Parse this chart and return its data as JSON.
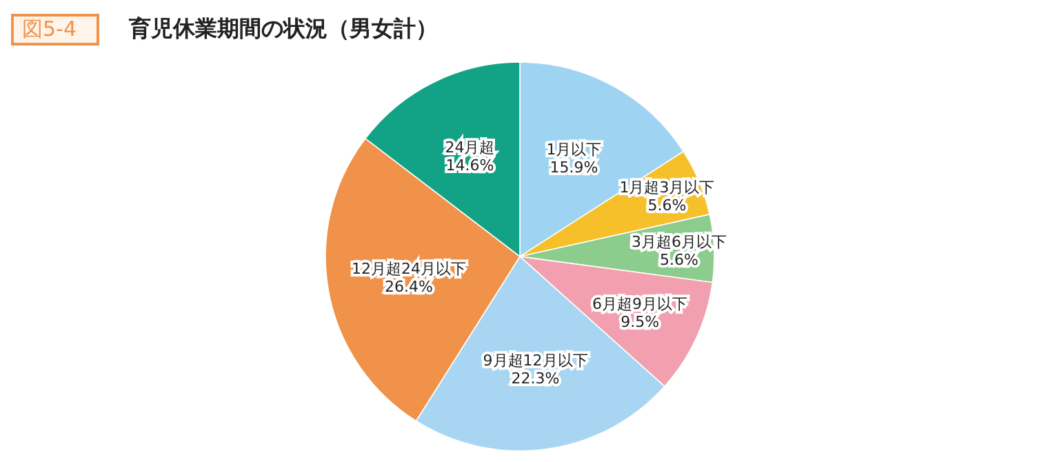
{
  "chart_data": {
    "type": "pie",
    "title": "育児休業期間の状況（男女計）",
    "annotations": [
      "図5-4"
    ],
    "categories": [
      "1月以下",
      "1月超3月以下",
      "3月超6月以下",
      "6月超9月以下",
      "9月超12月以下",
      "12月超24月以下",
      "24月超"
    ],
    "values": [
      15.9,
      5.6,
      5.6,
      9.5,
      22.3,
      26.4,
      14.6
    ],
    "value_labels": [
      "15.9%",
      "5.6%",
      "5.6%",
      "9.5%",
      "22.3%",
      "26.4%",
      "14.6%"
    ],
    "colors": [
      "#9fd3f2",
      "#f5c02a",
      "#8ccc8c",
      "#f2a0b0",
      "#a8d6f2",
      "#f0924a",
      "#12a285"
    ]
  }
}
